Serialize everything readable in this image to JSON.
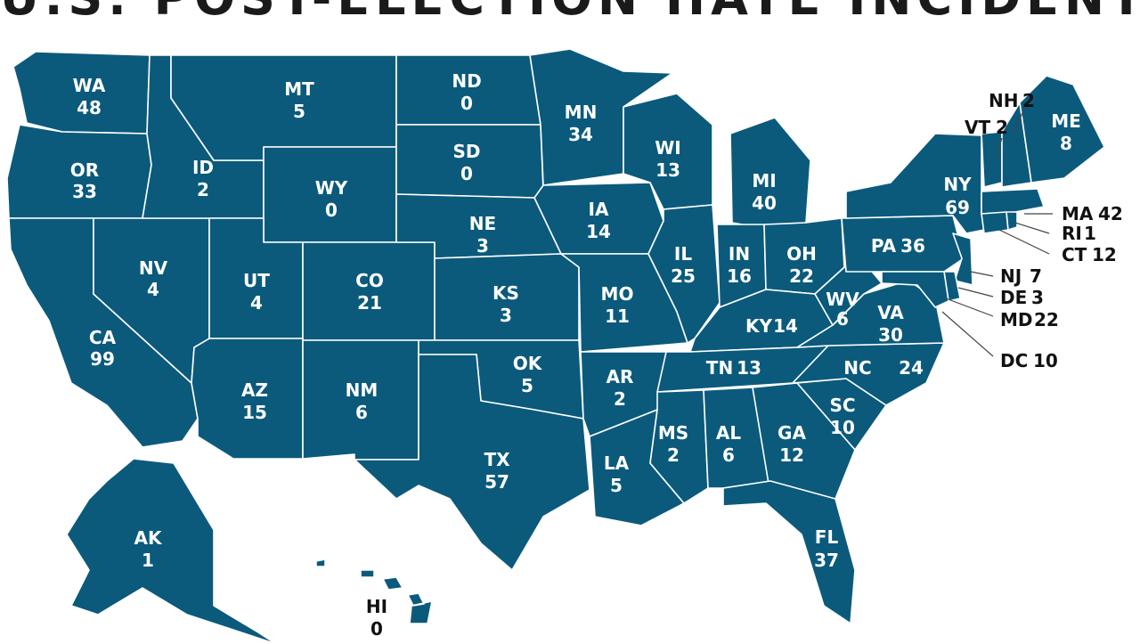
{
  "title": "U.S. POST-ELECTION HATE INCIDENTS",
  "colors": {
    "fill": "#0b5a7c",
    "border": "#ffffff",
    "external_label": "#111111"
  },
  "states": {
    "WA": {
      "abbr": "WA",
      "count": "48"
    },
    "OR": {
      "abbr": "OR",
      "count": "33"
    },
    "CA": {
      "abbr": "CA",
      "count": "99"
    },
    "NV": {
      "abbr": "NV",
      "count": "4"
    },
    "ID": {
      "abbr": "ID",
      "count": "2"
    },
    "MT": {
      "abbr": "MT",
      "count": "5"
    },
    "WY": {
      "abbr": "WY",
      "count": "0"
    },
    "UT": {
      "abbr": "UT",
      "count": "4"
    },
    "CO": {
      "abbr": "CO",
      "count": "21"
    },
    "AZ": {
      "abbr": "AZ",
      "count": "15"
    },
    "NM": {
      "abbr": "NM",
      "count": "6"
    },
    "ND": {
      "abbr": "ND",
      "count": "0"
    },
    "SD": {
      "abbr": "SD",
      "count": "0"
    },
    "NE": {
      "abbr": "NE",
      "count": "3"
    },
    "KS": {
      "abbr": "KS",
      "count": "3"
    },
    "OK": {
      "abbr": "OK",
      "count": "5"
    },
    "TX": {
      "abbr": "TX",
      "count": "57"
    },
    "MN": {
      "abbr": "MN",
      "count": "34"
    },
    "IA": {
      "abbr": "IA",
      "count": "14"
    },
    "MO": {
      "abbr": "MO",
      "count": "11"
    },
    "AR": {
      "abbr": "AR",
      "count": "2"
    },
    "LA": {
      "abbr": "LA",
      "count": "5"
    },
    "WI": {
      "abbr": "WI",
      "count": "13"
    },
    "IL": {
      "abbr": "IL",
      "count": "25"
    },
    "MI": {
      "abbr": "MI",
      "count": "40"
    },
    "IN": {
      "abbr": "IN",
      "count": "16"
    },
    "OH": {
      "abbr": "OH",
      "count": "22"
    },
    "KY": {
      "abbr": "KY",
      "count": "14"
    },
    "TN": {
      "abbr": "TN",
      "count": "13"
    },
    "MS": {
      "abbr": "MS",
      "count": "2"
    },
    "AL": {
      "abbr": "AL",
      "count": "6"
    },
    "GA": {
      "abbr": "GA",
      "count": "12"
    },
    "FL": {
      "abbr": "FL",
      "count": "37"
    },
    "SC": {
      "abbr": "SC",
      "count": "10"
    },
    "NC": {
      "abbr": "NC",
      "count": "24"
    },
    "VA": {
      "abbr": "VA",
      "count": "30"
    },
    "WV": {
      "abbr": "WV",
      "count": "6"
    },
    "PA": {
      "abbr": "PA",
      "count": "36"
    },
    "NY": {
      "abbr": "NY",
      "count": "69"
    },
    "ME": {
      "abbr": "ME",
      "count": "8"
    },
    "AK": {
      "abbr": "AK",
      "count": "1"
    },
    "HI": {
      "abbr": "HI",
      "count": "0"
    },
    "VT": {
      "abbr": "VT",
      "count": "2"
    },
    "NH": {
      "abbr": "NH",
      "count": "2"
    },
    "MA": {
      "abbr": "MA",
      "count": "42"
    },
    "RI": {
      "abbr": "RI",
      "count": "1"
    },
    "CT": {
      "abbr": "CT",
      "count": "12"
    },
    "NJ": {
      "abbr": "NJ",
      "count": "7"
    },
    "DE": {
      "abbr": "DE",
      "count": "3"
    },
    "MD": {
      "abbr": "MD",
      "count": "22"
    },
    "DC": {
      "abbr": "DC",
      "count": "10"
    }
  }
}
